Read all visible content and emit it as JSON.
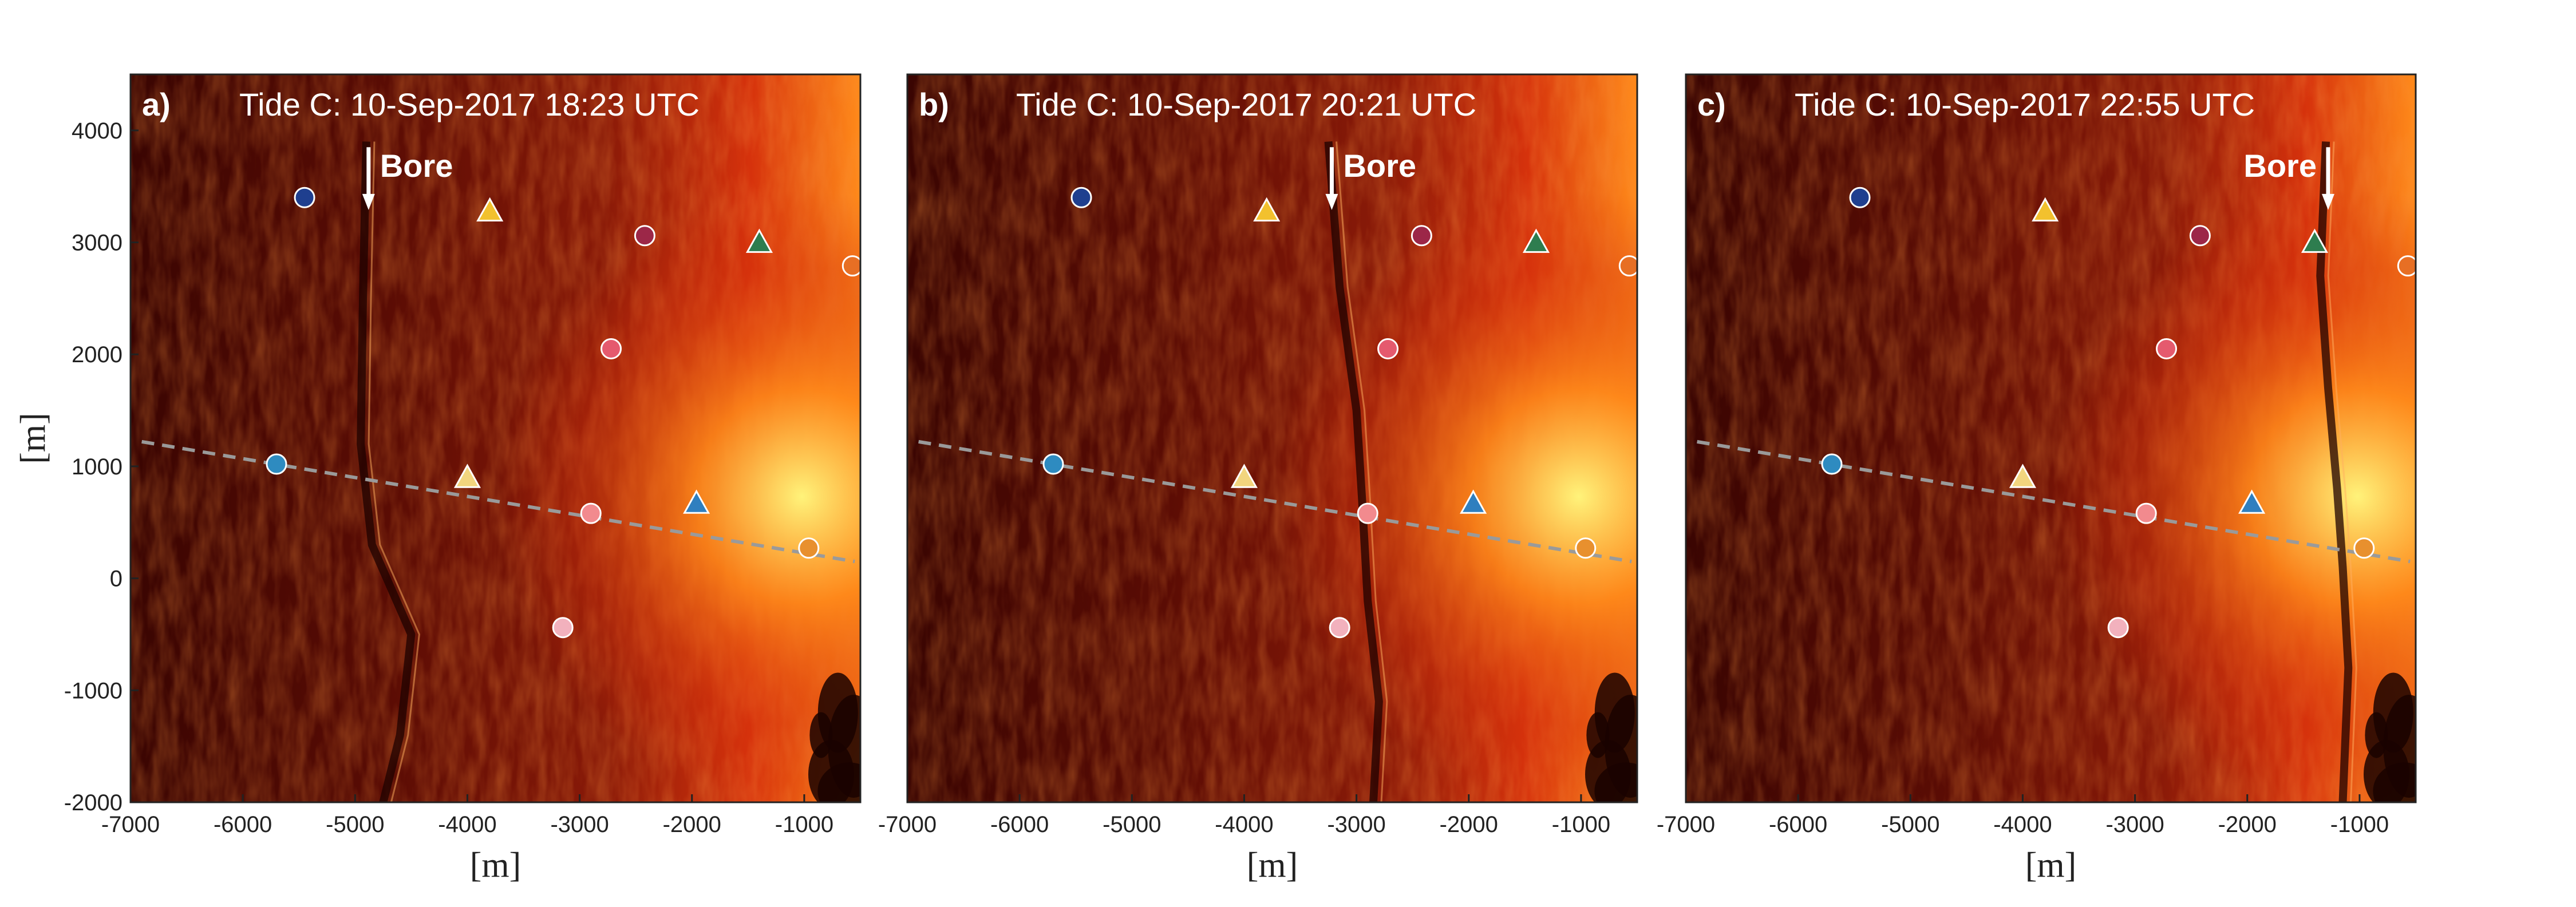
{
  "figure": {
    "shared_xlabel": "[m]",
    "shared_ylabel": "[m]"
  },
  "colors": {
    "background_dark": "#3a0502",
    "background_mid": "#8a1a08",
    "bright_red": "#d6320c",
    "orange": "#ff8a1a",
    "yellow": "#fff37a",
    "transect": "#9a9a9a",
    "frame": "#222222"
  },
  "chart_data": [
    {
      "type": "scatter",
      "panel": "a)",
      "title": "Tide C: 10-Sep-2017 18:23 UTC",
      "xlabel": "[m]",
      "ylabel": "[m]",
      "xlim": [
        -7000,
        -500
      ],
      "ylim": [
        -2000,
        4500
      ],
      "xticks": [
        -7000,
        -6000,
        -5000,
        -4000,
        -3000,
        -2000,
        -1000
      ],
      "yticks": [
        -2000,
        -1000,
        0,
        1000,
        2000,
        3000,
        4000
      ],
      "annotation": {
        "text": "Bore",
        "x": -4880,
        "y_start": 3850,
        "y_end": 3320,
        "side": "right"
      },
      "bore_front": [
        [
          -4900,
          3900
        ],
        [
          -4930,
          2500
        ],
        [
          -4950,
          1200
        ],
        [
          -4850,
          300
        ],
        [
          -4500,
          -500
        ],
        [
          -4600,
          -1400
        ],
        [
          -4750,
          -2000
        ]
      ],
      "transect": {
        "x": [
          -6900,
          -550
        ],
        "y": [
          1220,
          150
        ]
      },
      "markers": [
        {
          "shape": "circle",
          "color": "#1f3f8f",
          "x": -5450,
          "y": 3400
        },
        {
          "shape": "triangle",
          "color": "#f2c12e",
          "x": -3800,
          "y": 3280
        },
        {
          "shape": "circle",
          "color": "#9c2748",
          "x": -2420,
          "y": 3060
        },
        {
          "shape": "triangle",
          "color": "#2e7d4f",
          "x": -1400,
          "y": 3000
        },
        {
          "shape": "circle",
          "color": "#e76f24",
          "x": -570,
          "y": 2790
        },
        {
          "shape": "circle",
          "color": "#e55a6e",
          "x": -2720,
          "y": 2050
        },
        {
          "shape": "circle",
          "color": "#2e8bc0",
          "x": -5700,
          "y": 1020
        },
        {
          "shape": "triangle",
          "color": "#f2d57e",
          "x": -4000,
          "y": 900
        },
        {
          "shape": "circle",
          "color": "#f28a8e",
          "x": -2900,
          "y": 580
        },
        {
          "shape": "triangle",
          "color": "#2f7fbf",
          "x": -1960,
          "y": 670
        },
        {
          "shape": "circle",
          "color": "#e8902e",
          "x": -960,
          "y": 270
        },
        {
          "shape": "circle",
          "color": "#f2b1bd",
          "x": -3150,
          "y": -440
        }
      ]
    },
    {
      "type": "scatter",
      "panel": "b)",
      "title": "Tide C: 10-Sep-2017 20:21 UTC",
      "xlabel": "[m]",
      "ylabel": "",
      "xlim": [
        -7000,
        -500
      ],
      "ylim": [
        -2000,
        4500
      ],
      "xticks": [
        -7000,
        -6000,
        -5000,
        -4000,
        -3000,
        -2000,
        -1000
      ],
      "yticks": [],
      "annotation": {
        "text": "Bore",
        "x": -3220,
        "y_start": 3850,
        "y_end": 3320,
        "side": "right"
      },
      "bore_front": [
        [
          -3250,
          3900
        ],
        [
          -3150,
          2600
        ],
        [
          -3000,
          1500
        ],
        [
          -2950,
          700
        ],
        [
          -2900,
          -200
        ],
        [
          -2800,
          -1100
        ],
        [
          -2850,
          -2000
        ]
      ],
      "transect": {
        "x": [
          -6900,
          -550
        ],
        "y": [
          1220,
          150
        ]
      },
      "markers": [
        {
          "shape": "circle",
          "color": "#1f3f8f",
          "x": -5450,
          "y": 3400
        },
        {
          "shape": "triangle",
          "color": "#f2c12e",
          "x": -3800,
          "y": 3280
        },
        {
          "shape": "circle",
          "color": "#9c2748",
          "x": -2420,
          "y": 3060
        },
        {
          "shape": "triangle",
          "color": "#2e7d4f",
          "x": -1400,
          "y": 3000
        },
        {
          "shape": "circle",
          "color": "#e76f24",
          "x": -570,
          "y": 2790
        },
        {
          "shape": "circle",
          "color": "#e55a6e",
          "x": -2720,
          "y": 2050
        },
        {
          "shape": "circle",
          "color": "#2e8bc0",
          "x": -5700,
          "y": 1020
        },
        {
          "shape": "triangle",
          "color": "#f2d57e",
          "x": -4000,
          "y": 900
        },
        {
          "shape": "circle",
          "color": "#f28a8e",
          "x": -2900,
          "y": 580
        },
        {
          "shape": "triangle",
          "color": "#2f7fbf",
          "x": -1960,
          "y": 670
        },
        {
          "shape": "circle",
          "color": "#e8902e",
          "x": -960,
          "y": 270
        },
        {
          "shape": "circle",
          "color": "#f2b1bd",
          "x": -3150,
          "y": -440
        }
      ]
    },
    {
      "type": "scatter",
      "panel": "c)",
      "title": "Tide C: 10-Sep-2017 22:55 UTC",
      "xlabel": "[m]",
      "ylabel": "",
      "xlim": [
        -7000,
        -500
      ],
      "ylim": [
        -2000,
        4500
      ],
      "xticks": [
        -7000,
        -6000,
        -5000,
        -4000,
        -3000,
        -2000,
        -1000
      ],
      "yticks": [],
      "annotation": {
        "text": "Bore",
        "x": -1280,
        "y_start": 3850,
        "y_end": 3320,
        "side": "left"
      },
      "bore_front": [
        [
          -1300,
          3900
        ],
        [
          -1350,
          2700
        ],
        [
          -1280,
          1700
        ],
        [
          -1200,
          800
        ],
        [
          -1150,
          100
        ],
        [
          -1100,
          -800
        ],
        [
          -1150,
          -2000
        ]
      ],
      "transect": {
        "x": [
          -6900,
          -550
        ],
        "y": [
          1220,
          150
        ]
      },
      "markers": [
        {
          "shape": "circle",
          "color": "#1f3f8f",
          "x": -5450,
          "y": 3400
        },
        {
          "shape": "triangle",
          "color": "#f2c12e",
          "x": -3800,
          "y": 3280
        },
        {
          "shape": "circle",
          "color": "#9c2748",
          "x": -2420,
          "y": 3060
        },
        {
          "shape": "triangle",
          "color": "#2e7d4f",
          "x": -1400,
          "y": 3000
        },
        {
          "shape": "circle",
          "color": "#e76f24",
          "x": -570,
          "y": 2790
        },
        {
          "shape": "circle",
          "color": "#e55a6e",
          "x": -2720,
          "y": 2050
        },
        {
          "shape": "circle",
          "color": "#2e8bc0",
          "x": -5700,
          "y": 1020
        },
        {
          "shape": "triangle",
          "color": "#f2d57e",
          "x": -4000,
          "y": 900
        },
        {
          "shape": "circle",
          "color": "#f28a8e",
          "x": -2900,
          "y": 580
        },
        {
          "shape": "triangle",
          "color": "#2f7fbf",
          "x": -1960,
          "y": 670
        },
        {
          "shape": "circle",
          "color": "#e8902e",
          "x": -960,
          "y": 270
        },
        {
          "shape": "circle",
          "color": "#f2b1bd",
          "x": -3150,
          "y": -440
        }
      ]
    }
  ]
}
